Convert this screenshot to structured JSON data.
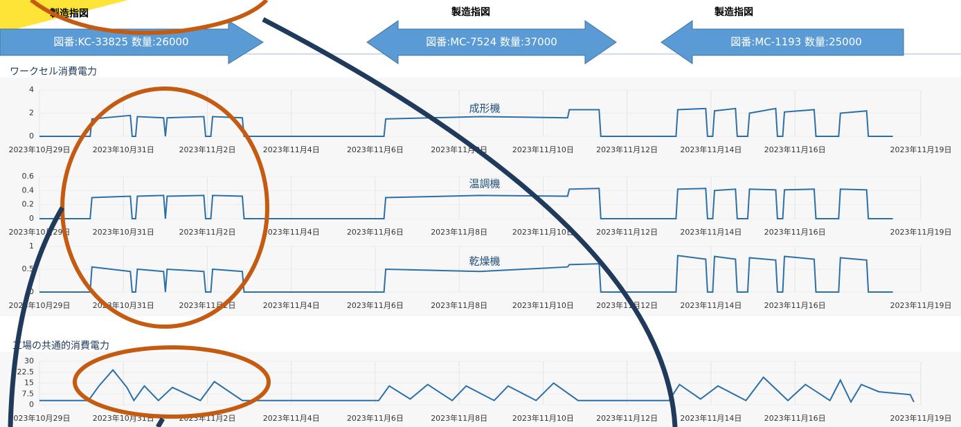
{
  "orders": [
    {
      "heading": "製造指図",
      "label": "図番:KC-33825 数量:26000"
    },
    {
      "heading": "製造指図",
      "label": "図番:MC-7524 数量:37000"
    },
    {
      "heading": "製造指図",
      "label": "図番:MC-1193 数量:25000"
    }
  ],
  "sections": [
    "ワークセル消費電力",
    "工場の共通的消費電力"
  ],
  "chart_data": [
    {
      "type": "line",
      "title": "成形機",
      "color": "#2a6fa8",
      "grid": true,
      "x": [
        "2023-10-29T00:00",
        "2023-10-30T05:00",
        "2023-10-30T06:00",
        "2023-10-31T04:00",
        "2023-10-31T05:00",
        "2023-10-31T07:00",
        "2023-10-31T08:00",
        "2023-10-31T23:00",
        "2023-11-01T00:00",
        "2023-11-01T01:00",
        "2023-11-01T22:00",
        "2023-11-01T23:00",
        "2023-11-02T02:00",
        "2023-11-02T03:00",
        "2023-11-02T20:00",
        "2023-11-02T21:00",
        "2023-11-06T05:00",
        "2023-11-06T06:00",
        "2023-11-08T12:00",
        "2023-11-10T14:00",
        "2023-11-10T15:00",
        "2023-11-11T08:00",
        "2023-11-11T09:00",
        "2023-11-13T04:00",
        "2023-11-13T05:00",
        "2023-11-13T21:00",
        "2023-11-13T22:00",
        "2023-11-14T01:00",
        "2023-11-14T02:00",
        "2023-11-14T14:00",
        "2023-11-14T15:00",
        "2023-11-14T21:00",
        "2023-11-14T22:00",
        "2023-11-15T13:00",
        "2023-11-15T14:00",
        "2023-11-15T17:00",
        "2023-11-15T18:00",
        "2023-11-16T11:00",
        "2023-11-16T12:00",
        "2023-11-17T01:00",
        "2023-11-17T02:00",
        "2023-11-17T17:00",
        "2023-11-17T18:00",
        "2023-11-18T08:00"
      ],
      "values": [
        0,
        0,
        1.5,
        1.8,
        0,
        0,
        1.7,
        1.6,
        0,
        1.6,
        1.7,
        0,
        0,
        1.7,
        1.6,
        0,
        0,
        1.5,
        1.7,
        1.6,
        2.3,
        2.3,
        0,
        0,
        2.3,
        2.4,
        0,
        0,
        2.2,
        2.4,
        0,
        0,
        2.0,
        2.4,
        0,
        0,
        2.1,
        2.3,
        0,
        0,
        2.0,
        2.2,
        0,
        0
      ],
      "xlim": [
        "2023-10-29T00:00",
        "2023-11-19T00:00"
      ],
      "xticks": [
        {
          "value": "2023-10-29",
          "label": "2023年10月29日"
        },
        {
          "value": "2023-10-31",
          "label": "2023年10月31日"
        },
        {
          "value": "2023-11-02",
          "label": "2023年11月2日"
        },
        {
          "value": "2023-11-04",
          "label": "2023年11月4日"
        },
        {
          "value": "2023-11-06",
          "label": "2023年11月6日"
        },
        {
          "value": "2023-11-08",
          "label": "2023年11月8日"
        },
        {
          "value": "2023-11-10",
          "label": "2023年11月10日"
        },
        {
          "value": "2023-11-12",
          "label": "2023年11月12日"
        },
        {
          "value": "2023-11-14",
          "label": "2023年11月14日"
        },
        {
          "value": "2023-11-16",
          "label": "2023年11月16日"
        },
        {
          "value": "2023-11-19",
          "label": "2023年11月19日"
        }
      ],
      "ylim": [
        0,
        4
      ],
      "yticks": [
        0,
        2,
        4
      ]
    },
    {
      "type": "line",
      "title": "温調機",
      "color": "#2a6fa8",
      "grid": true,
      "x": [
        "2023-10-29T00:00",
        "2023-10-30T05:00",
        "2023-10-30T06:00",
        "2023-10-31T04:00",
        "2023-10-31T05:00",
        "2023-10-31T07:00",
        "2023-10-31T08:00",
        "2023-10-31T23:00",
        "2023-11-01T00:00",
        "2023-11-01T01:00",
        "2023-11-01T22:00",
        "2023-11-01T23:00",
        "2023-11-02T02:00",
        "2023-11-02T03:00",
        "2023-11-02T20:00",
        "2023-11-02T21:00",
        "2023-11-06T05:00",
        "2023-11-06T06:00",
        "2023-11-08T12:00",
        "2023-11-10T14:00",
        "2023-11-10T15:00",
        "2023-11-11T08:00",
        "2023-11-11T09:00",
        "2023-11-13T04:00",
        "2023-11-13T05:00",
        "2023-11-13T21:00",
        "2023-11-13T22:00",
        "2023-11-14T01:00",
        "2023-11-14T02:00",
        "2023-11-14T14:00",
        "2023-11-14T15:00",
        "2023-11-14T21:00",
        "2023-11-14T22:00",
        "2023-11-15T13:00",
        "2023-11-15T14:00",
        "2023-11-15T17:00",
        "2023-11-15T18:00",
        "2023-11-16T11:00",
        "2023-11-16T12:00",
        "2023-11-17T01:00",
        "2023-11-17T02:00",
        "2023-11-17T17:00",
        "2023-11-17T18:00",
        "2023-11-18T08:00"
      ],
      "values": [
        0,
        0,
        0.3,
        0.32,
        0,
        0,
        0.32,
        0.33,
        0,
        0.32,
        0.33,
        0,
        0,
        0.33,
        0.32,
        0,
        0,
        0.3,
        0.33,
        0.32,
        0.42,
        0.43,
        0,
        0,
        0.42,
        0.43,
        0,
        0,
        0.4,
        0.42,
        0,
        0,
        0.42,
        0.41,
        0,
        0,
        0.41,
        0.42,
        0,
        0,
        0.42,
        0.41,
        0,
        0
      ],
      "xlim": [
        "2023-10-29T00:00",
        "2023-11-19T00:00"
      ],
      "xticks": [
        {
          "value": "2023-10-29",
          "label": "2023年10月29日"
        },
        {
          "value": "2023-10-31",
          "label": "2023年10月31日"
        },
        {
          "value": "2023-11-02",
          "label": "2023年11月2日"
        },
        {
          "value": "2023-11-04",
          "label": "2023年11月4日"
        },
        {
          "value": "2023-11-06",
          "label": "2023年11月6日"
        },
        {
          "value": "2023-11-08",
          "label": "2023年11月8日"
        },
        {
          "value": "2023-11-10",
          "label": "2023年11月10日"
        },
        {
          "value": "2023-11-12",
          "label": "2023年11月12日"
        },
        {
          "value": "2023-11-14",
          "label": "2023年11月14日"
        },
        {
          "value": "2023-11-16",
          "label": "2023年11月16日"
        },
        {
          "value": "2023-11-19",
          "label": "2023年11月19日"
        }
      ],
      "ylim": [
        0,
        0.6
      ],
      "yticks": [
        0,
        0.2,
        0.4,
        0.6
      ]
    },
    {
      "type": "line",
      "title": "乾燥機",
      "color": "#2a6fa8",
      "grid": true,
      "x": [
        "2023-10-29T00:00",
        "2023-10-30T05:00",
        "2023-10-30T06:00",
        "2023-10-31T04:00",
        "2023-10-31T05:00",
        "2023-10-31T07:00",
        "2023-10-31T08:00",
        "2023-10-31T23:00",
        "2023-11-01T00:00",
        "2023-11-01T01:00",
        "2023-11-01T22:00",
        "2023-11-01T23:00",
        "2023-11-02T02:00",
        "2023-11-02T03:00",
        "2023-11-02T20:00",
        "2023-11-02T21:00",
        "2023-11-06T05:00",
        "2023-11-06T06:00",
        "2023-11-08T12:00",
        "2023-11-10T14:00",
        "2023-11-10T15:00",
        "2023-11-11T08:00",
        "2023-11-11T09:00",
        "2023-11-13T04:00",
        "2023-11-13T05:00",
        "2023-11-13T21:00",
        "2023-11-13T22:00",
        "2023-11-14T01:00",
        "2023-11-14T02:00",
        "2023-11-14T14:00",
        "2023-11-14T15:00",
        "2023-11-14T21:00",
        "2023-11-14T22:00",
        "2023-11-15T13:00",
        "2023-11-15T14:00",
        "2023-11-15T17:00",
        "2023-11-15T18:00",
        "2023-11-16T11:00",
        "2023-11-16T12:00",
        "2023-11-17T01:00",
        "2023-11-17T02:00",
        "2023-11-17T17:00",
        "2023-11-17T18:00",
        "2023-11-18T08:00"
      ],
      "values": [
        0,
        0,
        0.55,
        0.45,
        0,
        0,
        0.5,
        0.45,
        0,
        0.5,
        0.45,
        0,
        0,
        0.5,
        0.45,
        0,
        0,
        0.5,
        0.45,
        0.55,
        0.6,
        0.62,
        0,
        0,
        0.8,
        0.72,
        0,
        0,
        0.78,
        0.72,
        0,
        0,
        0.75,
        0.7,
        0,
        0,
        0.78,
        0.72,
        0,
        0,
        0.75,
        0.7,
        0,
        0
      ],
      "xlim": [
        "2023-10-29T00:00",
        "2023-11-19T00:00"
      ],
      "xticks": [
        {
          "value": "2023-10-29",
          "label": "2023年10月29日"
        },
        {
          "value": "2023-10-31",
          "label": "2023年10月31日"
        },
        {
          "value": "2023-11-02",
          "label": "2023年11月2日"
        },
        {
          "value": "2023-11-04",
          "label": "2023年11月4日"
        },
        {
          "value": "2023-11-06",
          "label": "2023年11月6日"
        },
        {
          "value": "2023-11-08",
          "label": "2023年11月8日"
        },
        {
          "value": "2023-11-10",
          "label": "2023年11月10日"
        },
        {
          "value": "2023-11-12",
          "label": "2023年11月12日"
        },
        {
          "value": "2023-11-14",
          "label": "2023年11月14日"
        },
        {
          "value": "2023-11-16",
          "label": "2023年11月16日"
        },
        {
          "value": "2023-11-19",
          "label": "2023年11月19日"
        }
      ],
      "ylim": [
        0,
        1
      ],
      "yticks": [
        0,
        0.5,
        1
      ]
    },
    {
      "type": "line",
      "color": "#2a6fa8",
      "grid": true,
      "x": [
        "2023-10-29T00:00",
        "2023-10-30T04:00",
        "2023-10-30T10:00",
        "2023-10-30T18:00",
        "2023-10-31T02:00",
        "2023-10-31T06:00",
        "2023-10-31T12:00",
        "2023-10-31T20:00",
        "2023-11-01T04:00",
        "2023-11-01T20:00",
        "2023-11-02T04:00",
        "2023-11-02T20:00",
        "2023-11-06T02:00",
        "2023-11-06T08:00",
        "2023-11-06T20:00",
        "2023-11-07T06:00",
        "2023-11-07T20:00",
        "2023-11-08T04:00",
        "2023-11-08T20:00",
        "2023-11-09T04:00",
        "2023-11-09T20:00",
        "2023-11-10T06:00",
        "2023-11-10T20:00",
        "2023-11-13T00:00",
        "2023-11-13T06:00",
        "2023-11-13T18:00",
        "2023-11-14T04:00",
        "2023-11-14T20:00",
        "2023-11-15T06:00",
        "2023-11-15T20:00",
        "2023-11-16T06:00",
        "2023-11-16T20:00",
        "2023-11-17T02:00",
        "2023-11-17T08:00",
        "2023-11-17T14:00",
        "2023-11-18T00:00",
        "2023-11-18T18:00",
        "2023-11-18T20:00"
      ],
      "values": [
        3,
        3,
        13,
        24,
        12,
        3,
        13,
        3,
        12,
        3,
        16,
        3,
        3,
        13,
        4,
        14,
        3,
        13,
        3,
        13,
        3,
        15,
        3,
        3,
        14,
        4,
        13,
        3,
        19,
        3,
        14,
        3,
        17,
        2,
        14,
        9,
        7,
        2
      ],
      "xlim": [
        "2023-10-29T00:00",
        "2023-11-19T00:00"
      ],
      "xticks": [
        {
          "value": "2023-10-29",
          "label": "2023年10月29日"
        },
        {
          "value": "2023-10-31",
          "label": "2023年10月31日"
        },
        {
          "value": "2023-11-02",
          "label": "2023年11月2日"
        },
        {
          "value": "2023-11-04",
          "label": "2023年11月4日"
        },
        {
          "value": "2023-11-06",
          "label": "2023年11月6日"
        },
        {
          "value": "2023-11-08",
          "label": "2023年11月8日"
        },
        {
          "value": "2023-11-10",
          "label": "2023年11月10日"
        },
        {
          "value": "2023-11-12",
          "label": "2023年11月12日"
        },
        {
          "value": "2023-11-14",
          "label": "2023年11月14日"
        },
        {
          "value": "2023-11-16",
          "label": "2023年11月16日"
        },
        {
          "value": "2023-11-19",
          "label": "2023年11月19日"
        }
      ],
      "ylim": [
        0,
        30
      ],
      "yticks": [
        0,
        7.5,
        15,
        22.5,
        30
      ]
    }
  ]
}
